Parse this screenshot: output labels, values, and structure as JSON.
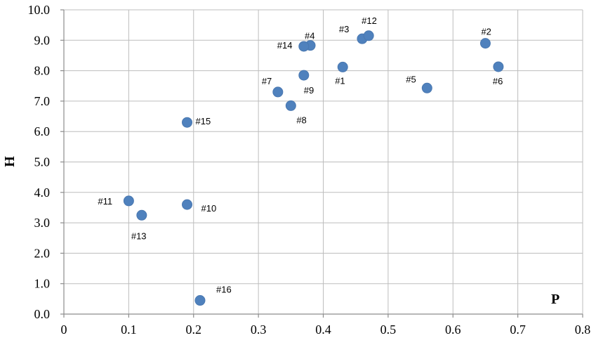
{
  "chart_data": {
    "type": "scatter",
    "xlabel": "P",
    "ylabel": "H",
    "xlim": [
      0,
      0.8
    ],
    "ylim": [
      0,
      10
    ],
    "x_ticks": [
      "0",
      "0.1",
      "0.2",
      "0.3",
      "0.4",
      "0.5",
      "0.6",
      "0.7",
      "0.8"
    ],
    "y_ticks": [
      "0.0",
      "1.0",
      "2.0",
      "3.0",
      "4.0",
      "5.0",
      "6.0",
      "7.0",
      "8.0",
      "9.0",
      "10.0"
    ],
    "grid": true,
    "marker_color": "#4f81bd",
    "points": [
      {
        "label": "#1",
        "x": 0.43,
        "y": 8.12
      },
      {
        "label": "#2",
        "x": 0.65,
        "y": 8.9
      },
      {
        "label": "#3",
        "x": 0.46,
        "y": 9.05
      },
      {
        "label": "#4",
        "x": 0.38,
        "y": 8.83
      },
      {
        "label": "#5",
        "x": 0.56,
        "y": 7.43
      },
      {
        "label": "#6",
        "x": 0.67,
        "y": 8.13
      },
      {
        "label": "#7",
        "x": 0.33,
        "y": 7.3
      },
      {
        "label": "#8",
        "x": 0.35,
        "y": 6.85
      },
      {
        "label": "#9",
        "x": 0.37,
        "y": 7.85
      },
      {
        "label": "#10",
        "x": 0.19,
        "y": 3.6
      },
      {
        "label": "#11",
        "x": 0.1,
        "y": 3.72
      },
      {
        "label": "#12",
        "x": 0.47,
        "y": 9.15
      },
      {
        "label": "#13",
        "x": 0.12,
        "y": 3.25
      },
      {
        "label": "#14",
        "x": 0.37,
        "y": 8.8
      },
      {
        "label": "#15",
        "x": 0.19,
        "y": 6.3
      },
      {
        "label": "#16",
        "x": 0.21,
        "y": 0.45
      }
    ]
  }
}
